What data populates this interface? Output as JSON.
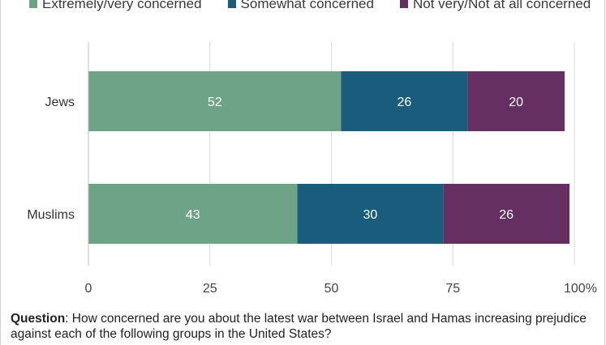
{
  "legend": [
    {
      "label": "Extremely/very concerned",
      "color": "#6fa387"
    },
    {
      "label": "Somewhat concerned",
      "color": "#1a5c7c"
    },
    {
      "label": "Not very/Not at all concerned",
      "color": "#652f62"
    }
  ],
  "chart_data": {
    "type": "bar",
    "orientation": "horizontal",
    "stacked": true,
    "categories": [
      "Jews",
      "Muslims"
    ],
    "series": [
      {
        "name": "Extremely/very concerned",
        "values": [
          52,
          43
        ],
        "color": "#6fa387"
      },
      {
        "name": "Somewhat concerned",
        "values": [
          26,
          30
        ],
        "color": "#1a5c7c"
      },
      {
        "name": "Not very/Not at all concerned",
        "values": [
          20,
          26
        ],
        "color": "#652f62"
      }
    ],
    "xlim": [
      0,
      100
    ],
    "xticks": [
      "0",
      "25",
      "50",
      "75",
      "100%"
    ],
    "xtick_values": [
      0,
      25,
      50,
      75,
      100
    ],
    "grid": "vertical",
    "legend_position": "top",
    "data_labels": true
  },
  "question": {
    "label": "Question",
    "text": ": How concerned are you about the latest war between Israel and Hamas increasing prejudice against each of the following groups in the United States?"
  }
}
